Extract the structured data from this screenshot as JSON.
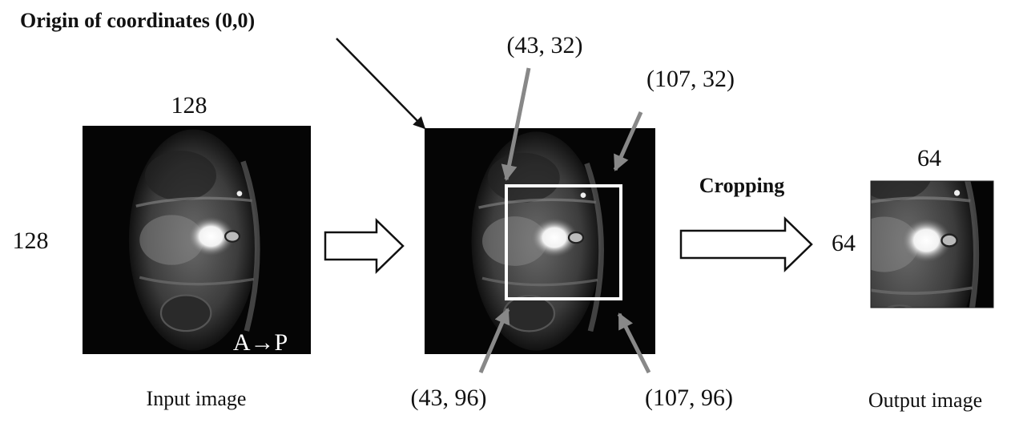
{
  "title": "Origin of coordinates (0,0)",
  "input_image": {
    "width_label": "128",
    "height_label": "128",
    "orientation": "A→P",
    "caption": "Input image"
  },
  "crop_box": {
    "top_left": "(43, 32)",
    "top_right": "(107, 32)",
    "bottom_left": "(43, 96)",
    "bottom_right": "(107, 96)"
  },
  "operation": "Cropping",
  "output_image": {
    "width_label": "64",
    "height_label": "64",
    "caption": "Output image"
  }
}
